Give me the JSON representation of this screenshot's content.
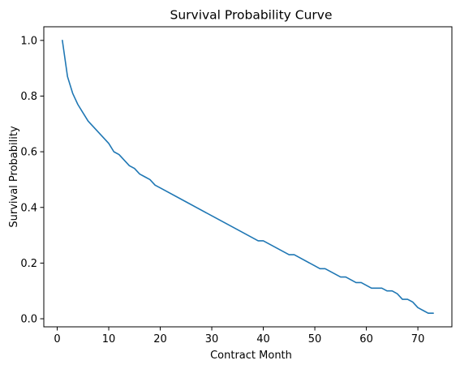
{
  "chart_data": {
    "type": "line",
    "title": "Survival Probability Curve",
    "xlabel": "Contract Month",
    "ylabel": "Survival Probability",
    "xlim": [
      -2.6,
      76.6
    ],
    "ylim": [
      -0.029,
      1.049
    ],
    "x_ticks": [
      0,
      10,
      20,
      30,
      40,
      50,
      60,
      70
    ],
    "y_ticks": [
      0.0,
      0.2,
      0.4,
      0.6,
      0.8,
      1.0
    ],
    "y_tick_labels": [
      "0.0",
      "0.2",
      "0.4",
      "0.6",
      "0.8",
      "1.0"
    ],
    "grid": false,
    "line_color": "#1f77b4",
    "series": [
      {
        "x": [
          1,
          2,
          3,
          4,
          5,
          6,
          7,
          8,
          9,
          10,
          11,
          12,
          13,
          14,
          15,
          16,
          17,
          18,
          19,
          20,
          25,
          30,
          35,
          39,
          40,
          45,
          46,
          50,
          51,
          52,
          55,
          56,
          58,
          59,
          61,
          63,
          64,
          65,
          66,
          67,
          68,
          69,
          70,
          71,
          72,
          73
        ],
        "y": [
          1.0,
          0.87,
          0.81,
          0.77,
          0.74,
          0.71,
          0.69,
          0.67,
          0.65,
          0.63,
          0.6,
          0.59,
          0.57,
          0.55,
          0.54,
          0.52,
          0.51,
          0.5,
          0.48,
          0.47,
          0.42,
          0.37,
          0.32,
          0.28,
          0.28,
          0.23,
          0.23,
          0.19,
          0.18,
          0.18,
          0.15,
          0.15,
          0.13,
          0.13,
          0.11,
          0.11,
          0.1,
          0.1,
          0.09,
          0.07,
          0.07,
          0.06,
          0.04,
          0.03,
          0.02,
          0.02
        ]
      }
    ]
  }
}
